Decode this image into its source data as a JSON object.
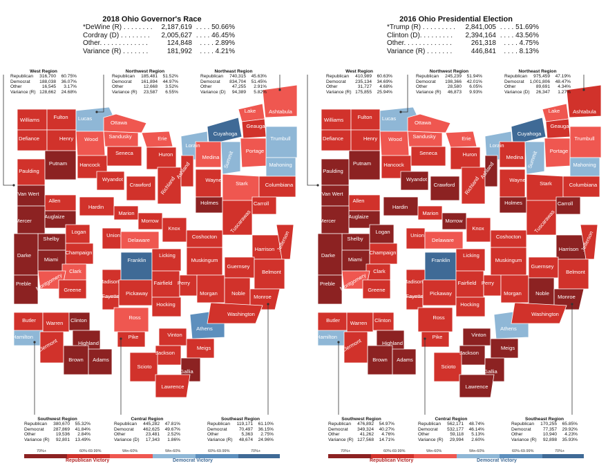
{
  "panels": [
    {
      "title": "2018 Ohio Governor's Race",
      "summary": [
        {
          "label": "*DeWine (R) . . . . . . . .",
          "value": "2,187,619",
          "pct": ". . . . 50.66%"
        },
        {
          "label": "Cordray (D) . . . . . . . .",
          "value": "2,005,627",
          "pct": ". . . . 46.45%"
        },
        {
          "label": "Other. . . . . . . . . . . . .",
          "value": "124,848",
          "pct": ". . . . 2.89%"
        },
        {
          "label": "Variance (R) . . . . . . .",
          "value": "181,992",
          "pct": ". . . . 4.21%"
        }
      ],
      "regions": {
        "west": {
          "title": "West Region",
          "rows": [
            [
              "Republican",
              "316,700",
              "60.75%"
            ],
            [
              "Democrat",
              "188,038",
              "36.07%"
            ],
            [
              "Other",
              "16,545",
              "3.17%"
            ],
            [
              "Variance (R)",
              "128,662",
              "24.68%"
            ]
          ]
        },
        "northwest": {
          "title": "Northwest Region",
          "rows": [
            [
              "Republican",
              "185,481",
              "51.52%"
            ],
            [
              "Democrat",
              "161,894",
              "44.97%"
            ],
            [
              "Other",
              "12,668",
              "3.52%"
            ],
            [
              "Variance (R)",
              "23,587",
              "6.55%"
            ]
          ]
        },
        "northeast": {
          "title": "Northeast Region",
          "rows": [
            [
              "Republican",
              "740,315",
              "45.63%"
            ],
            [
              "Democrat",
              "834,704",
              "51.45%"
            ],
            [
              "Other",
              "47,255",
              "2.91%"
            ],
            [
              "Variance (D)",
              "94,389",
              "5.82%"
            ]
          ]
        },
        "southwest": {
          "title": "Southwest Region",
          "rows": [
            [
              "Republican",
              "380,670",
              "55.32%"
            ],
            [
              "Democrat",
              "287,869",
              "41.84%"
            ],
            [
              "Other",
              "19,536",
              "2.84%"
            ],
            [
              "Variance (R)",
              "92,801",
              "13.49%"
            ]
          ]
        },
        "central": {
          "title": "Central Region",
          "rows": [
            [
              "Republican",
              "445,282",
              "47.81%"
            ],
            [
              "Democrat",
              "462,625",
              "49.67%"
            ],
            [
              "Other",
              "23,481",
              "2.52%"
            ],
            [
              "Variance (D)",
              "17,343",
              "1.86%"
            ]
          ]
        },
        "southeast": {
          "title": "Southeast Region",
          "rows": [
            [
              "Republican",
              "119,171",
              "61.10%"
            ],
            [
              "Democrat",
              "70,497",
              "36.15%"
            ],
            [
              "Other",
              "5,363",
              "2.75%"
            ],
            [
              "Variance (R)",
              "48,674",
              "24.96%"
            ]
          ]
        }
      },
      "county_colors": {
        "Williams": "r2",
        "Fulton": "r2",
        "Lucas": "d1",
        "Ottawa": "r1",
        "Defiance": "r2",
        "Henry": "r2",
        "Wood": "r1",
        "Sandusky": "r1",
        "Erie": "r1",
        "Paulding": "r2",
        "Putnam": "r3",
        "Hancock": "r2",
        "Seneca": "r2",
        "Huron": "r2",
        "Lorain": "d1",
        "Cuyahoga": "d3",
        "Lake": "r1",
        "Geauga": "r2",
        "Ashtabula": "r1",
        "Trumbull": "d1",
        "Van Wert": "r3",
        "Allen": "r2",
        "Wyandot": "r2",
        "Crawford": "r2",
        "Richland": "r2",
        "Ashland": "r2",
        "Medina": "r1",
        "Summit": "d1",
        "Portage": "r1",
        "Mahoning": "d1",
        "Mercer": "r3",
        "Auglaize": "r3",
        "Hardin": "r2",
        "Marion": "r2",
        "Morrow": "r2",
        "Wayne": "r2",
        "Stark": "r1",
        "Columbiana": "r2",
        "Shelby": "r3",
        "Logan": "r2",
        "Union": "r2",
        "Delaware": "r1",
        "Knox": "r2",
        "Holmes": "r3",
        "Tuscarawas": "r2",
        "Carroll": "r2",
        "Darke": "r3",
        "Miami": "r3",
        "Champaign": "r2",
        "Clark": "r1",
        "Madison": "r2",
        "Franklin": "d3",
        "Licking": "r2",
        "Coshocton": "r2",
        "Muskingum": "r2",
        "Harrison": "r2",
        "Jefferson": "r2",
        "Preble": "r3",
        "Montgomery": "r1",
        "Greene": "r2",
        "Fayette": "r2",
        "Pickaway": "r2",
        "Fairfield": "r2",
        "Perry": "r2",
        "Morgan": "r2",
        "Guernsey": "r2",
        "Belmont": "r2",
        "Noble": "r2",
        "Monroe": "r2",
        "Butler": "r2",
        "Warren": "r2",
        "Clinton": "r3",
        "Hamilton": "d1",
        "Clermont": "r2",
        "Highland": "r3",
        "Brown": "r3",
        "Adams": "r3",
        "Ross": "r1",
        "Hocking": "r2",
        "Pike": "r2",
        "Vinton": "r2",
        "Athens": "d2",
        "Washington": "r2",
        "Jackson": "r2",
        "Meigs": "r2",
        "Scioto": "r2",
        "Gallia": "r3",
        "Lawrence": "r2"
      }
    },
    {
      "title": "2016 Ohio Presidential Election",
      "summary": [
        {
          "label": "*Trump (R) . . . . . . . . .",
          "value": "2,841,005",
          "pct": ". . . . 51.69%"
        },
        {
          "label": "Clinton (D). . . . . . . . .",
          "value": "2,394,164",
          "pct": ". . . . 43.56%"
        },
        {
          "label": "Other. . . . . . . . . . . . .",
          "value": "261,318",
          "pct": ". . . . 4.75%"
        },
        {
          "label": "Variance (R) . . . . . . .",
          "value": "446,841",
          "pct": ". . . . 8.13%"
        }
      ],
      "regions": {
        "west": {
          "title": "West Region",
          "rows": [
            [
              "Republican",
              "410,989",
              "60.63%"
            ],
            [
              "Democrat",
              "235,134",
              "34.69%"
            ],
            [
              "Other",
              "31,727",
              "4.68%"
            ],
            [
              "Variance (R)",
              "175,855",
              "25.94%"
            ]
          ]
        },
        "northwest": {
          "title": "Northwest Region",
          "rows": [
            [
              "Republican",
              "245,239",
              "51.94%"
            ],
            [
              "Democrat",
              "198,366",
              "42.01%"
            ],
            [
              "Other",
              "28,580",
              "6.05%"
            ],
            [
              "Variance (R)",
              "46,873",
              "9.93%"
            ]
          ]
        },
        "northeast": {
          "title": "Northeast Region",
          "rows": [
            [
              "Republican",
              "975,459",
              "47.19%"
            ],
            [
              "Democrat",
              "1,001,806",
              "48.47%"
            ],
            [
              "Other",
              "89,691",
              "4.34%"
            ],
            [
              "Variance (D)",
              "26,347",
              "1.27%"
            ]
          ]
        },
        "southwest": {
          "title": "Southwest Region",
          "rows": [
            [
              "Republican",
              "476,892",
              "54.97%"
            ],
            [
              "Democrat",
              "349,324",
              "40.27%"
            ],
            [
              "Other",
              "41,262",
              "4.76%"
            ],
            [
              "Variance (R)",
              "127,568",
              "14.71%"
            ]
          ]
        },
        "central": {
          "title": "Central Region",
          "rows": [
            [
              "Republican",
              "562,171",
              "48.74%"
            ],
            [
              "Democrat",
              "532,177",
              "46.14%"
            ],
            [
              "Other",
              "59,118",
              "5.13%"
            ],
            [
              "Variance (R)",
              "29,994",
              "2.60%"
            ]
          ]
        },
        "southeast": {
          "title": "Southeast Region",
          "rows": [
            [
              "Republican",
              "170,255",
              "65.85%"
            ],
            [
              "Democrat",
              "77,357",
              "29.92%"
            ],
            [
              "Other",
              "10,940",
              "4.23%"
            ],
            [
              "Variance (R)",
              "92,898",
              "35.93%"
            ]
          ]
        }
      },
      "county_colors": {
        "Williams": "r2",
        "Fulton": "r2",
        "Lucas": "d1",
        "Ottawa": "r1",
        "Defiance": "r2",
        "Henry": "r2",
        "Wood": "r1",
        "Sandusky": "r1",
        "Erie": "r1",
        "Paulding": "r3",
        "Putnam": "r3",
        "Hancock": "r2",
        "Seneca": "r2",
        "Huron": "r2",
        "Lorain": "d1",
        "Cuyahoga": "d3",
        "Lake": "r1",
        "Geauga": "r2",
        "Ashtabula": "r2",
        "Trumbull": "r1",
        "Van Wert": "r3",
        "Allen": "r2",
        "Wyandot": "r3",
        "Crawford": "r3",
        "Richland": "r2",
        "Ashland": "r3",
        "Medina": "r2",
        "Summit": "d1",
        "Portage": "r1",
        "Mahoning": "d1",
        "Mercer": "r3",
        "Auglaize": "r3",
        "Hardin": "r3",
        "Marion": "r2",
        "Morrow": "r3",
        "Wayne": "r2",
        "Stark": "r2",
        "Columbiana": "r2",
        "Shelby": "r3",
        "Logan": "r3",
        "Union": "r2",
        "Delaware": "r1",
        "Knox": "r2",
        "Holmes": "r3",
        "Tuscarawas": "r2",
        "Carroll": "r3",
        "Darke": "r3",
        "Miami": "r3",
        "Champaign": "r2",
        "Clark": "r2",
        "Madison": "r2",
        "Franklin": "d3",
        "Licking": "r2",
        "Coshocton": "r2",
        "Muskingum": "r2",
        "Harrison": "r3",
        "Jefferson": "r2",
        "Preble": "r3",
        "Montgomery": "r1",
        "Greene": "r2",
        "Fayette": "r2",
        "Pickaway": "r2",
        "Fairfield": "r2",
        "Perry": "r2",
        "Morgan": "r2",
        "Guernsey": "r2",
        "Belmont": "r2",
        "Noble": "r3",
        "Monroe": "r3",
        "Butler": "r2",
        "Warren": "r2",
        "Clinton": "r2",
        "Hamilton": "d1",
        "Clermont": "r2",
        "Highland": "r3",
        "Brown": "r3",
        "Adams": "r3",
        "Ross": "r2",
        "Hocking": "r2",
        "Pike": "r2",
        "Vinton": "r3",
        "Athens": "d1",
        "Washington": "r2",
        "Jackson": "r3",
        "Meigs": "r3",
        "Scioto": "r2",
        "Gallia": "r3",
        "Lawrence": "r3"
      }
    }
  ],
  "palette": {
    "r3": "#8c2222",
    "r2": "#d1322b",
    "r1": "#ef5750",
    "d1": "#8fb7d6",
    "d2": "#5d8fbd",
    "d3": "#3f6a96"
  },
  "legend": {
    "ticks": [
      "70%+",
      "60%-69.99%",
      "Win-60%",
      "Win-60%",
      "60%-69.99%",
      "70%+"
    ],
    "republican": "Republican Victory",
    "democrat": "Democrat Victory",
    "colors": [
      "#8c2222",
      "#d1322b",
      "#ef5750",
      "#8fb7d6",
      "#5d8fbd",
      "#3f6a96"
    ],
    "republican_color": "#b22222",
    "democrat_color": "#3f6a96"
  }
}
